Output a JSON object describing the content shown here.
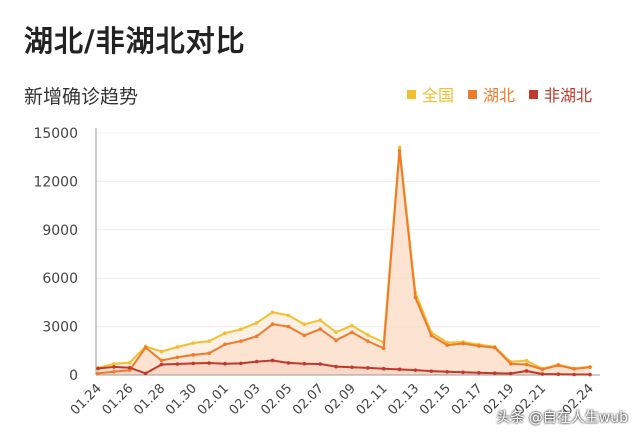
{
  "chart_data": {
    "type": "line",
    "title": "湖北/非湖北对比",
    "subtitle": "新增确诊趋势",
    "xlabel": "",
    "ylabel": "",
    "ylim": [
      0,
      15000
    ],
    "yticks": [
      "0",
      "3000",
      "6000",
      "9000",
      "12000",
      "15000"
    ],
    "ytick_values": [
      0,
      3000,
      6000,
      9000,
      12000,
      15000
    ],
    "x": [
      "01.24",
      "01.25",
      "01.26",
      "01.27",
      "01.28",
      "01.29",
      "01.30",
      "01.31",
      "02.01",
      "02.02",
      "02.03",
      "02.04",
      "02.05",
      "02.06",
      "02.07",
      "02.08",
      "02.09",
      "02.10",
      "02.11",
      "02.12",
      "02.13",
      "02.14",
      "02.15",
      "02.16",
      "02.17",
      "02.18",
      "02.19",
      "02.20",
      "02.21",
      "02.22",
      "02.23",
      "02.24"
    ],
    "xtick_labels": [
      "01.24",
      "01.26",
      "01.28",
      "01.30",
      "02.01",
      "02.03",
      "02.05",
      "02.07",
      "02.09",
      "02.11",
      "02.13",
      "02.15",
      "02.17",
      "02.19",
      "02.21",
      "02.24"
    ],
    "grid": true,
    "legend_position": "top-right",
    "series": [
      {
        "name": "全国",
        "color": "#f2bf2e",
        "values": [
          444,
          688,
          769,
          1771,
          1459,
          1737,
          1981,
          2099,
          2590,
          2829,
          3235,
          3887,
          3694,
          3143,
          3399,
          2656,
          3062,
          2478,
          2015,
          14108,
          5090,
          2641,
          2009,
          2048,
          1886,
          1749,
          820,
          889,
          397,
          648,
          409,
          508
        ]
      },
      {
        "name": "湖北",
        "color": "#ee7b2c",
        "values": [
          100,
          200,
          300,
          1700,
          900,
          1100,
          1250,
          1350,
          1900,
          2100,
          2400,
          3150,
          3000,
          2450,
          2850,
          2150,
          2650,
          2100,
          1650,
          13900,
          4800,
          2450,
          1850,
          1950,
          1800,
          1700,
          700,
          650,
          350,
          600,
          380,
          480
        ]
      },
      {
        "name": "非湖北",
        "color": "#c0392b",
        "values": [
          400,
          500,
          450,
          100,
          650,
          680,
          720,
          740,
          700,
          720,
          830,
          900,
          750,
          700,
          680,
          520,
          480,
          440,
          390,
          350,
          300,
          240,
          200,
          170,
          140,
          110,
          90,
          250,
          60,
          50,
          30,
          28
        ]
      }
    ],
    "watermark": "头条 @自在人生wub"
  }
}
